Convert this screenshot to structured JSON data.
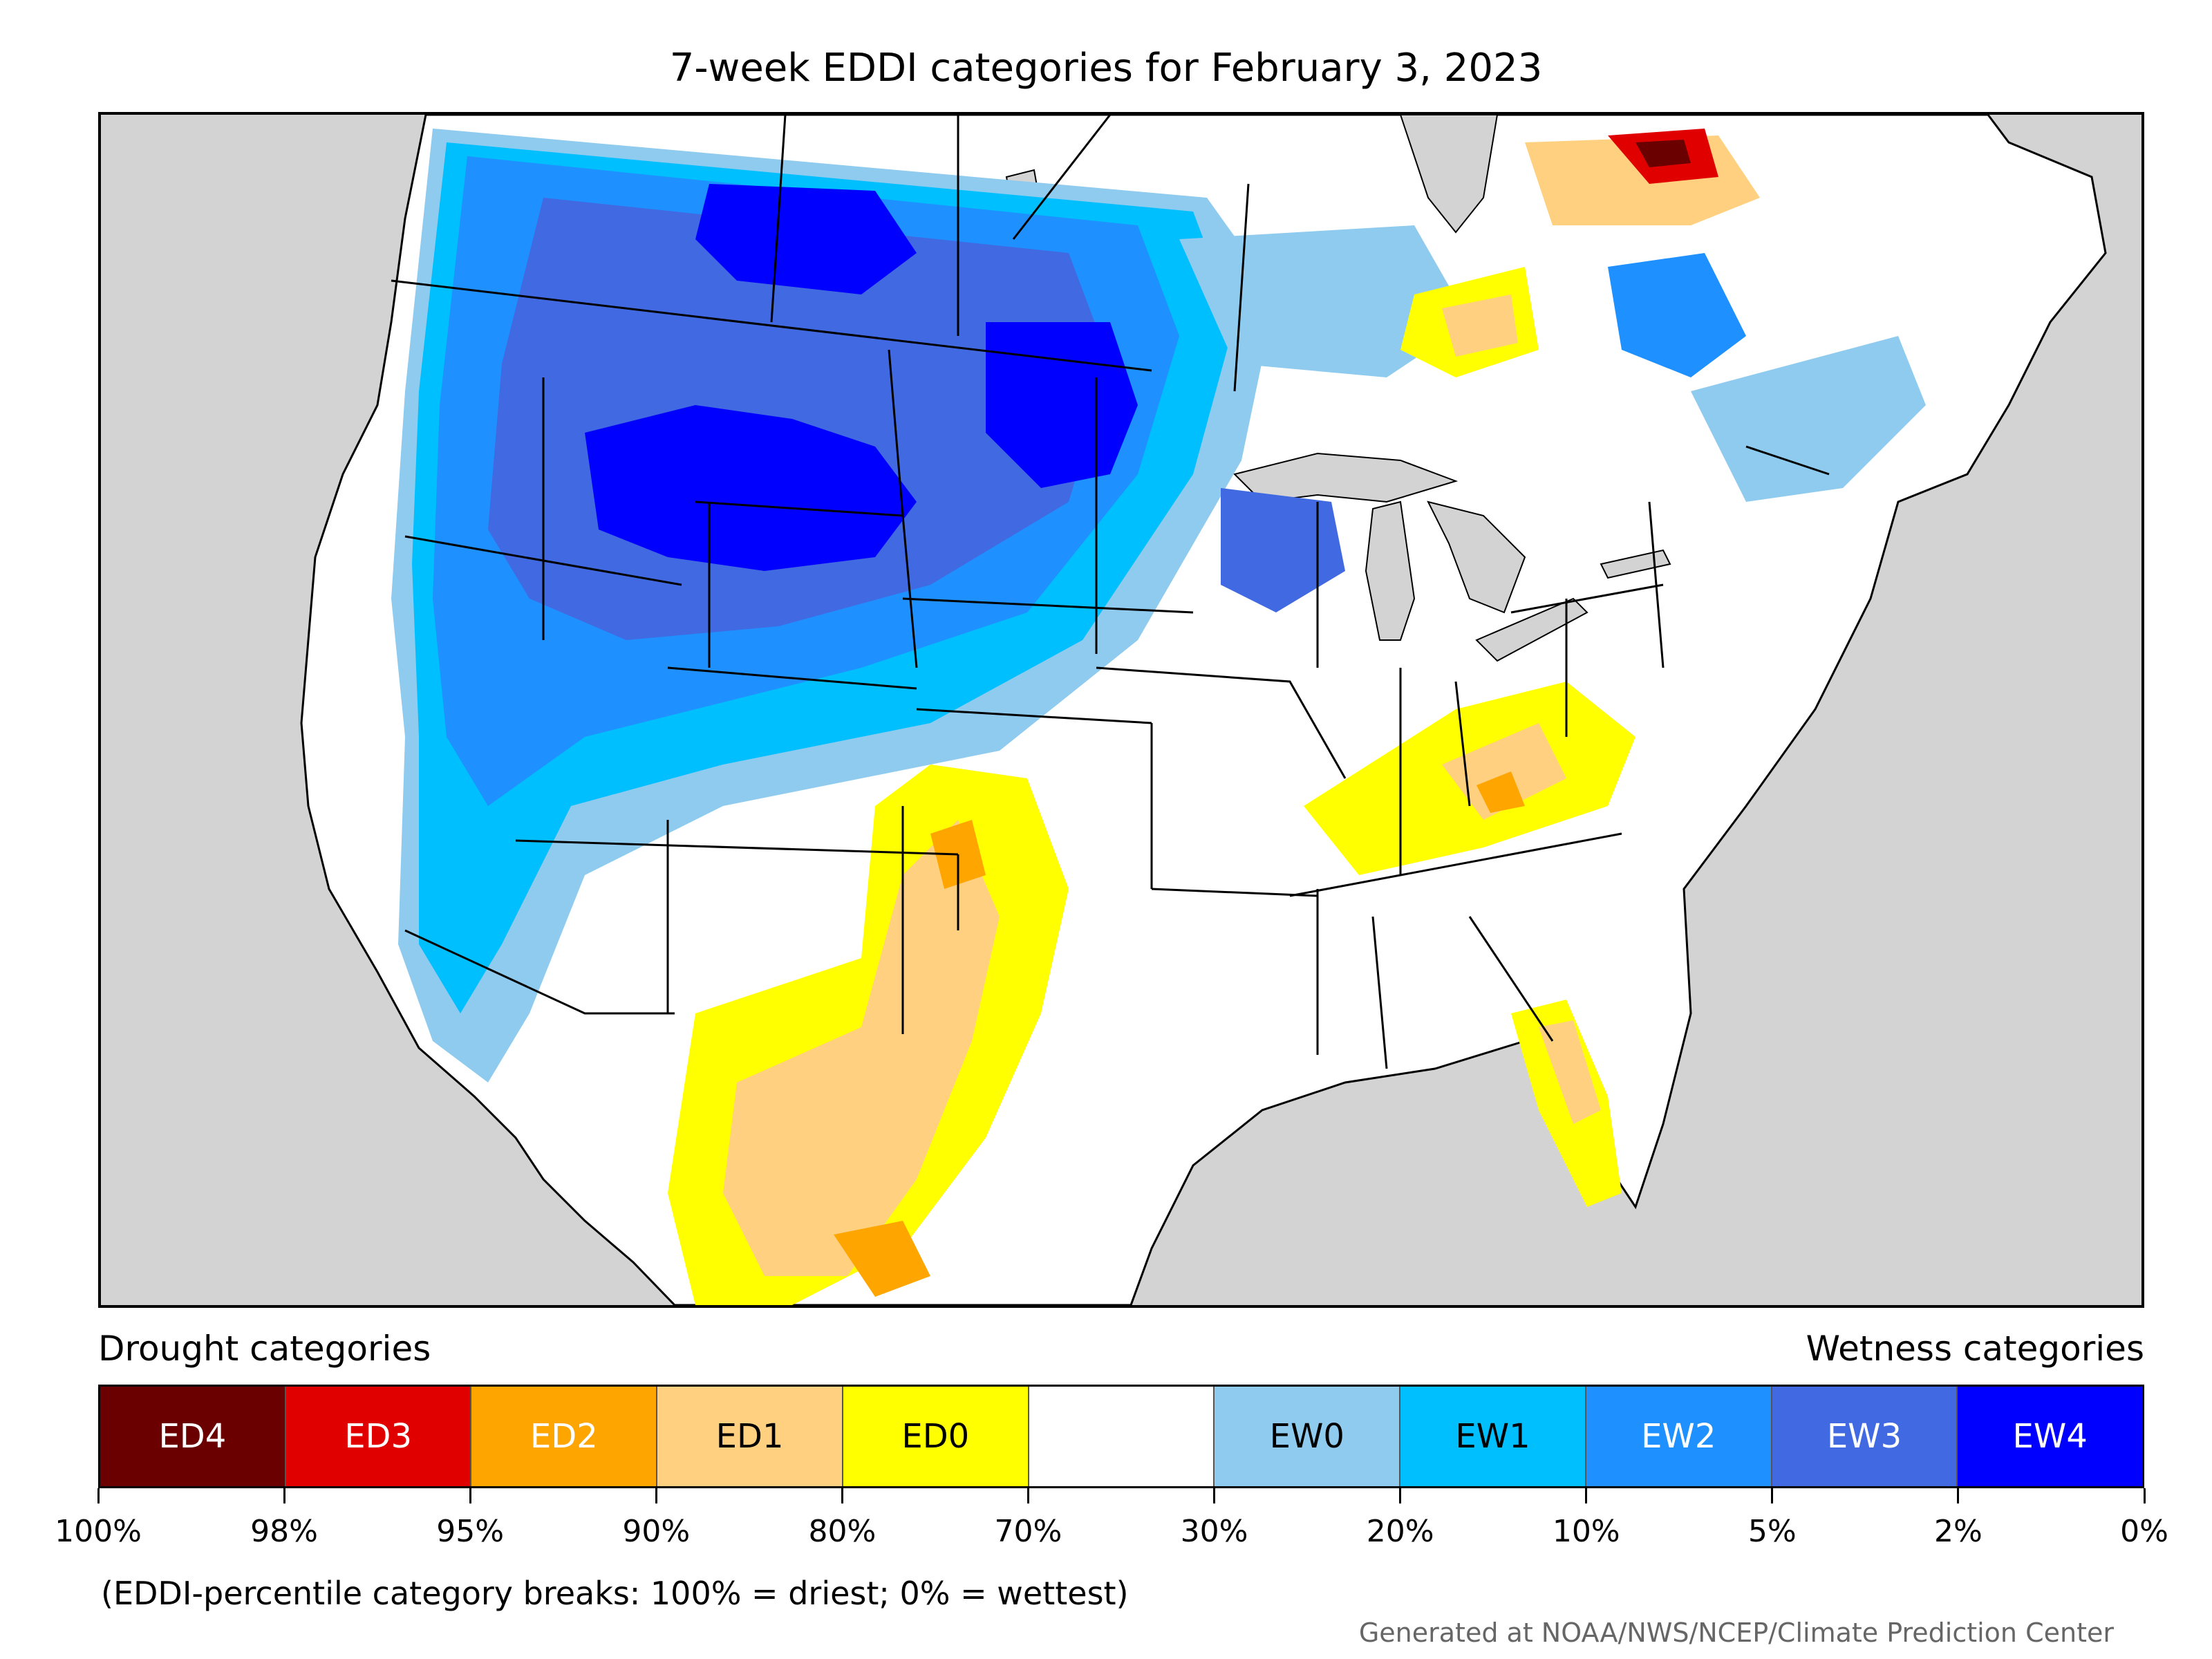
{
  "title": "7-week EDDI categories for February 3, 2023",
  "legend": {
    "left_label": "Drought categories",
    "right_label": "Wetness categories",
    "categories": [
      {
        "label": "ED4",
        "color": "#6b0000",
        "text_color": "#ffffff"
      },
      {
        "label": "ED3",
        "color": "#e00000",
        "text_color": "#ffffff"
      },
      {
        "label": "ED2",
        "color": "#ffa500",
        "text_color": "#ffffff"
      },
      {
        "label": "ED1",
        "color": "#ffd080",
        "text_color": "#000000"
      },
      {
        "label": "ED0",
        "color": "#ffff00",
        "text_color": "#000000"
      },
      {
        "label": "",
        "color": "#ffffff",
        "text_color": "#000000"
      },
      {
        "label": "EW0",
        "color": "#8ecbee",
        "text_color": "#000000"
      },
      {
        "label": "EW1",
        "color": "#00bfff",
        "text_color": "#000000"
      },
      {
        "label": "EW2",
        "color": "#1e90ff",
        "text_color": "#ffffff"
      },
      {
        "label": "EW3",
        "color": "#4169e1",
        "text_color": "#ffffff"
      },
      {
        "label": "EW4",
        "color": "#0000ff",
        "text_color": "#ffffff"
      }
    ],
    "ticks": [
      "100%",
      "98%",
      "95%",
      "90%",
      "80%",
      "70%",
      "30%",
      "20%",
      "10%",
      "5%",
      "2%",
      "0%"
    ]
  },
  "note": "(EDDI-percentile category breaks: 100% = driest; 0% = wettest)",
  "credit": "Generated at NOAA/NWS/NCEP/Climate Prediction Center",
  "map": {
    "ocean_color": "#d3d3d3",
    "land_color": "#ffffff",
    "boundary_color": "#000000"
  }
}
